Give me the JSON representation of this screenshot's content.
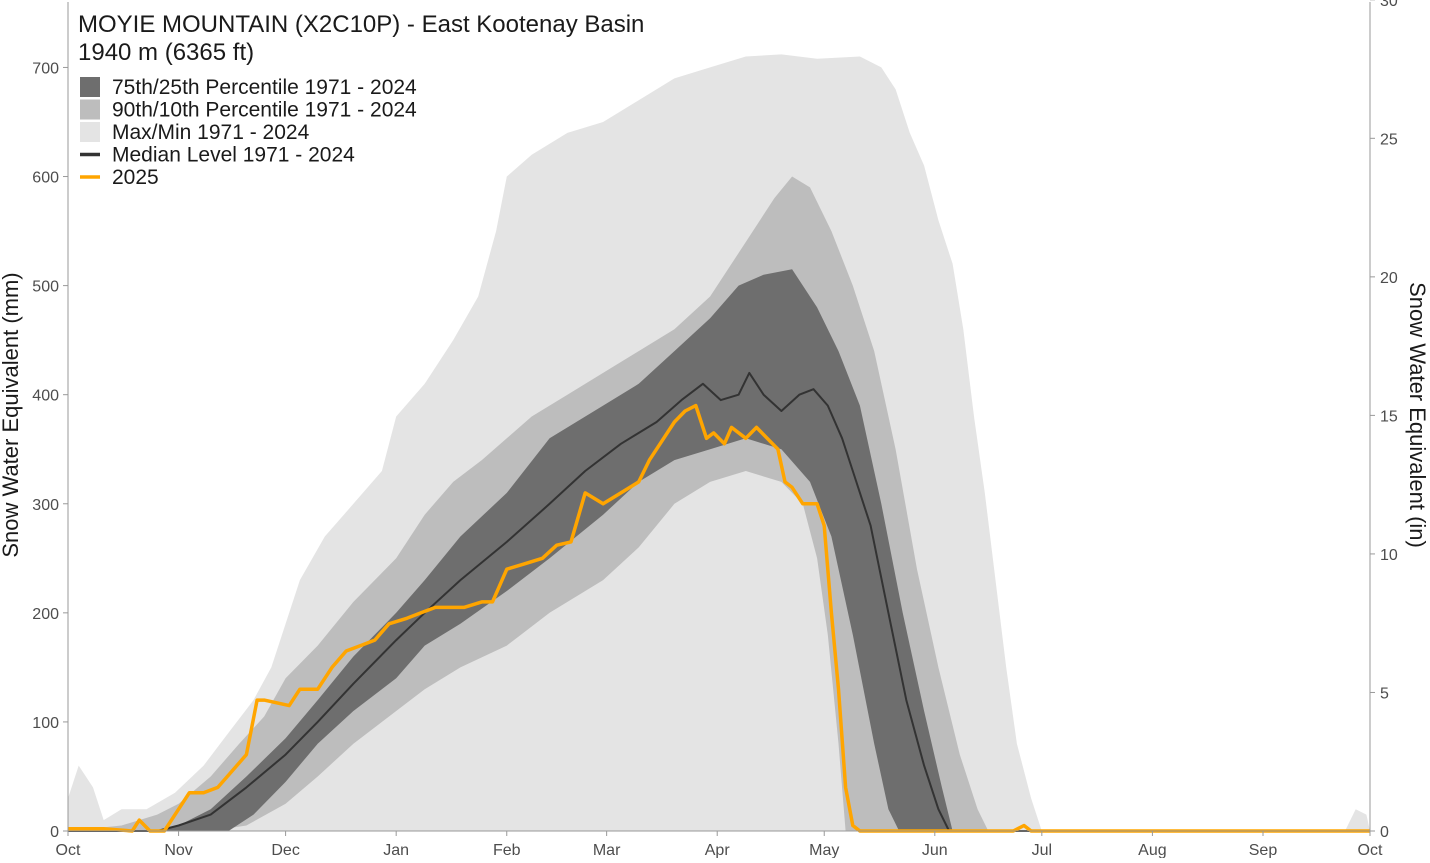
{
  "chart_data": {
    "type": "area",
    "title": "MOYIE MOUNTAIN (X2C10P) - East Kootenay Basin",
    "subtitle": "1940 m (6365 ft)",
    "ylabel": "Snow Water Equivalent (mm)",
    "y2label": "Snow Water Equivalent (in)",
    "xlabel": "",
    "ylim": [
      0,
      760
    ],
    "y2lim": [
      0,
      29.92
    ],
    "yticks": [
      0,
      100,
      200,
      300,
      400,
      500,
      600,
      700
    ],
    "y2ticks": [
      0,
      5,
      10,
      15,
      20,
      25,
      30
    ],
    "x_month_ticks": [
      {
        "label": "Oct",
        "day": 0
      },
      {
        "label": "Nov",
        "day": 31
      },
      {
        "label": "Dec",
        "day": 61
      },
      {
        "label": "Jan",
        "day": 92
      },
      {
        "label": "Feb",
        "day": 123
      },
      {
        "label": "Mar",
        "day": 151
      },
      {
        "label": "Apr",
        "day": 182
      },
      {
        "label": "May",
        "day": 212
      },
      {
        "label": "Jun",
        "day": 243
      },
      {
        "label": "Jul",
        "day": 273
      },
      {
        "label": "Aug",
        "day": 304
      },
      {
        "label": "Sep",
        "day": 335
      },
      {
        "label": "Oct",
        "day": 365
      }
    ],
    "grid": false,
    "legend_position": "top-left",
    "legend": [
      {
        "label": "75th/25th Percentile 1971 - 2024",
        "kind": "box",
        "color": "#6e6e6e"
      },
      {
        "label": "90th/10th Percentile 1971 - 2024",
        "kind": "box",
        "color": "#bdbdbd"
      },
      {
        "label": "Max/Min 1971 - 2024",
        "kind": "box",
        "color": "#e4e4e4"
      },
      {
        "label": "Median Level 1971 - 2024",
        "kind": "line",
        "color": "#333333"
      },
      {
        "label": "2025",
        "kind": "line",
        "color": "#ffa500"
      }
    ],
    "colors": {
      "band_25_75": "#6e6e6e",
      "band_10_90": "#bdbdbd",
      "band_min_max": "#e4e4e4",
      "median": "#333333",
      "current_year": "#ffa500",
      "axis": "#999999"
    },
    "bands": [
      {
        "name": "Max/Min 1971 - 2024",
        "upper": [
          [
            0,
            30
          ],
          [
            3,
            60
          ],
          [
            7,
            40
          ],
          [
            10,
            10
          ],
          [
            15,
            20
          ],
          [
            22,
            20
          ],
          [
            30,
            35
          ],
          [
            38,
            60
          ],
          [
            45,
            90
          ],
          [
            52,
            120
          ],
          [
            57,
            150
          ],
          [
            61,
            190
          ],
          [
            65,
            230
          ],
          [
            72,
            270
          ],
          [
            80,
            300
          ],
          [
            88,
            330
          ],
          [
            92,
            380
          ],
          [
            100,
            410
          ],
          [
            108,
            450
          ],
          [
            115,
            490
          ],
          [
            120,
            550
          ],
          [
            123,
            600
          ],
          [
            130,
            620
          ],
          [
            140,
            640
          ],
          [
            150,
            650
          ],
          [
            160,
            670
          ],
          [
            170,
            690
          ],
          [
            180,
            700
          ],
          [
            190,
            710
          ],
          [
            200,
            712
          ],
          [
            210,
            708
          ],
          [
            222,
            710
          ],
          [
            228,
            700
          ],
          [
            232,
            680
          ],
          [
            236,
            640
          ],
          [
            240,
            610
          ],
          [
            244,
            560
          ],
          [
            248,
            520
          ],
          [
            251,
            460
          ],
          [
            254,
            380
          ],
          [
            257,
            310
          ],
          [
            260,
            230
          ],
          [
            263,
            150
          ],
          [
            266,
            80
          ],
          [
            270,
            30
          ],
          [
            273,
            0
          ],
          [
            358,
            0
          ],
          [
            361,
            20
          ],
          [
            364,
            15
          ],
          [
            365,
            0
          ]
        ],
        "lower": [
          [
            0,
            0
          ],
          [
            212,
            0
          ],
          [
            216,
            0
          ]
        ],
        "lower_override": [
          [
            0,
            0
          ],
          [
            150,
            0
          ],
          [
            160,
            0
          ],
          [
            170,
            0
          ],
          [
            180,
            0
          ],
          [
            212,
            0
          ],
          [
            365,
            0
          ]
        ]
      },
      {
        "name": "90th/10th Percentile 1971 - 2024",
        "upper": [
          [
            0,
            0
          ],
          [
            15,
            5
          ],
          [
            25,
            15
          ],
          [
            31,
            25
          ],
          [
            40,
            50
          ],
          [
            48,
            80
          ],
          [
            55,
            105
          ],
          [
            61,
            140
          ],
          [
            70,
            170
          ],
          [
            80,
            210
          ],
          [
            92,
            250
          ],
          [
            100,
            290
          ],
          [
            108,
            320
          ],
          [
            116,
            340
          ],
          [
            123,
            360
          ],
          [
            130,
            380
          ],
          [
            140,
            400
          ],
          [
            150,
            420
          ],
          [
            160,
            440
          ],
          [
            170,
            460
          ],
          [
            180,
            490
          ],
          [
            190,
            540
          ],
          [
            198,
            580
          ],
          [
            203,
            600
          ],
          [
            208,
            590
          ],
          [
            214,
            550
          ],
          [
            220,
            500
          ],
          [
            226,
            440
          ],
          [
            232,
            350
          ],
          [
            238,
            240
          ],
          [
            244,
            150
          ],
          [
            250,
            70
          ],
          [
            255,
            20
          ],
          [
            258,
            0
          ]
        ],
        "lower": [
          [
            0,
            0
          ],
          [
            40,
            0
          ],
          [
            50,
            5
          ],
          [
            61,
            25
          ],
          [
            70,
            50
          ],
          [
            80,
            80
          ],
          [
            92,
            110
          ],
          [
            100,
            130
          ],
          [
            110,
            150
          ],
          [
            123,
            170
          ],
          [
            135,
            200
          ],
          [
            150,
            230
          ],
          [
            160,
            260
          ],
          [
            170,
            300
          ],
          [
            180,
            320
          ],
          [
            190,
            330
          ],
          [
            200,
            320
          ],
          [
            206,
            300
          ],
          [
            210,
            250
          ],
          [
            213,
            180
          ],
          [
            216,
            80
          ],
          [
            218,
            0
          ],
          [
            258,
            0
          ]
        ]
      },
      {
        "name": "75th/25th Percentile 1971 - 2024",
        "upper": [
          [
            0,
            0
          ],
          [
            25,
            0
          ],
          [
            31,
            5
          ],
          [
            40,
            20
          ],
          [
            50,
            50
          ],
          [
            61,
            85
          ],
          [
            70,
            120
          ],
          [
            80,
            160
          ],
          [
            92,
            200
          ],
          [
            100,
            230
          ],
          [
            110,
            270
          ],
          [
            123,
            310
          ],
          [
            135,
            360
          ],
          [
            150,
            390
          ],
          [
            160,
            410
          ],
          [
            170,
            440
          ],
          [
            180,
            470
          ],
          [
            188,
            500
          ],
          [
            195,
            510
          ],
          [
            203,
            515
          ],
          [
            210,
            480
          ],
          [
            216,
            440
          ],
          [
            222,
            390
          ],
          [
            228,
            300
          ],
          [
            234,
            200
          ],
          [
            240,
            110
          ],
          [
            245,
            40
          ],
          [
            248,
            0
          ]
        ],
        "lower": [
          [
            0,
            0
          ],
          [
            45,
            0
          ],
          [
            52,
            15
          ],
          [
            61,
            45
          ],
          [
            70,
            80
          ],
          [
            80,
            110
          ],
          [
            92,
            140
          ],
          [
            100,
            170
          ],
          [
            110,
            190
          ],
          [
            123,
            220
          ],
          [
            135,
            250
          ],
          [
            150,
            290
          ],
          [
            160,
            320
          ],
          [
            170,
            340
          ],
          [
            180,
            350
          ],
          [
            190,
            360
          ],
          [
            200,
            350
          ],
          [
            208,
            320
          ],
          [
            214,
            270
          ],
          [
            220,
            180
          ],
          [
            226,
            80
          ],
          [
            230,
            20
          ],
          [
            233,
            0
          ]
        ]
      }
    ],
    "series": [
      {
        "name": "Median Level 1971 - 2024",
        "color": "#333333",
        "points": [
          [
            0,
            0
          ],
          [
            25,
            0
          ],
          [
            31,
            5
          ],
          [
            40,
            15
          ],
          [
            50,
            40
          ],
          [
            61,
            70
          ],
          [
            70,
            100
          ],
          [
            80,
            135
          ],
          [
            92,
            175
          ],
          [
            100,
            200
          ],
          [
            110,
            230
          ],
          [
            123,
            265
          ],
          [
            135,
            300
          ],
          [
            145,
            330
          ],
          [
            155,
            355
          ],
          [
            165,
            375
          ],
          [
            172,
            395
          ],
          [
            178,
            410
          ],
          [
            183,
            395
          ],
          [
            188,
            400
          ],
          [
            191,
            420
          ],
          [
            195,
            400
          ],
          [
            200,
            385
          ],
          [
            205,
            400
          ],
          [
            209,
            405
          ],
          [
            213,
            390
          ],
          [
            217,
            360
          ],
          [
            220,
            330
          ],
          [
            225,
            280
          ],
          [
            230,
            200
          ],
          [
            235,
            120
          ],
          [
            240,
            60
          ],
          [
            244,
            20
          ],
          [
            247,
            0
          ],
          [
            365,
            0
          ]
        ]
      },
      {
        "name": "2025",
        "color": "#ffa500",
        "points": [
          [
            0,
            2
          ],
          [
            10,
            2
          ],
          [
            18,
            0
          ],
          [
            20,
            10
          ],
          [
            23,
            0
          ],
          [
            27,
            0
          ],
          [
            31,
            20
          ],
          [
            34,
            35
          ],
          [
            38,
            35
          ],
          [
            42,
            40
          ],
          [
            46,
            55
          ],
          [
            50,
            70
          ],
          [
            53,
            120
          ],
          [
            55,
            120
          ],
          [
            62,
            115
          ],
          [
            65,
            130
          ],
          [
            70,
            130
          ],
          [
            74,
            150
          ],
          [
            78,
            165
          ],
          [
            82,
            170
          ],
          [
            86,
            175
          ],
          [
            90,
            190
          ],
          [
            95,
            195
          ],
          [
            99,
            200
          ],
          [
            103,
            205
          ],
          [
            107,
            205
          ],
          [
            111,
            205
          ],
          [
            116,
            210
          ],
          [
            119,
            210
          ],
          [
            123,
            240
          ],
          [
            128,
            245
          ],
          [
            133,
            250
          ],
          [
            137,
            262
          ],
          [
            141,
            265
          ],
          [
            145,
            310
          ],
          [
            150,
            300
          ],
          [
            155,
            310
          ],
          [
            160,
            320
          ],
          [
            163,
            340
          ],
          [
            167,
            360
          ],
          [
            170,
            375
          ],
          [
            173,
            385
          ],
          [
            176,
            390
          ],
          [
            179,
            360
          ],
          [
            181,
            365
          ],
          [
            184,
            355
          ],
          [
            186,
            370
          ],
          [
            190,
            360
          ],
          [
            193,
            370
          ],
          [
            196,
            360
          ],
          [
            199,
            350
          ],
          [
            201,
            320
          ],
          [
            203,
            315
          ],
          [
            206,
            300
          ],
          [
            208,
            300
          ],
          [
            210,
            300
          ],
          [
            212,
            280
          ],
          [
            214,
            200
          ],
          [
            216,
            130
          ],
          [
            218,
            40
          ],
          [
            220,
            5
          ],
          [
            222,
            0
          ],
          [
            265,
            0
          ],
          [
            268,
            5
          ],
          [
            270,
            0
          ],
          [
            365,
            0
          ]
        ]
      }
    ]
  }
}
